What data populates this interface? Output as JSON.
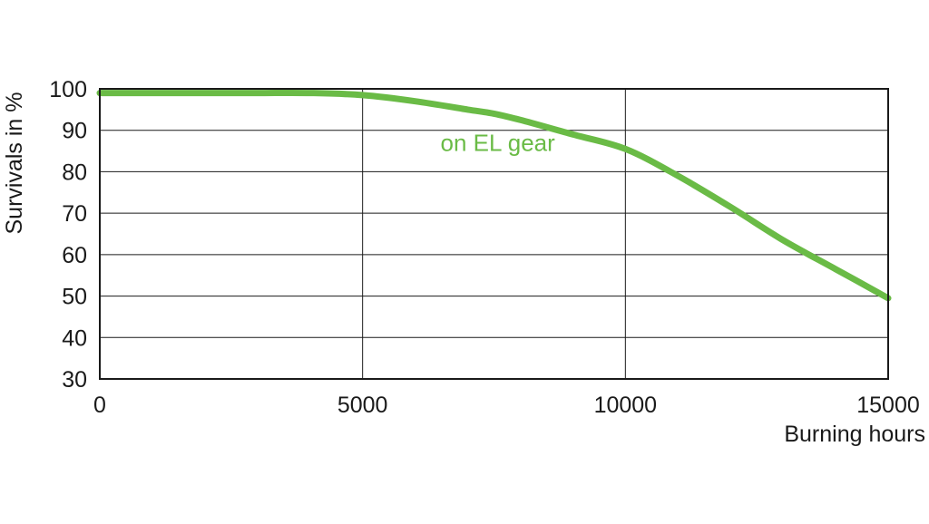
{
  "chart_data": {
    "type": "line",
    "title": "",
    "xlabel": "Burning hours",
    "ylabel": "Survivals in %",
    "xlim": [
      0,
      15000
    ],
    "ylim": [
      30,
      100
    ],
    "x_ticks": [
      0,
      5000,
      10000,
      15000
    ],
    "x_tick_labels": [
      "0",
      "5000",
      "10000",
      "15000"
    ],
    "y_ticks": [
      30,
      40,
      50,
      60,
      70,
      80,
      90,
      100
    ],
    "y_tick_labels": [
      "30",
      "40",
      "50",
      "60",
      "70",
      "80",
      "90",
      "100"
    ],
    "grid": true,
    "series": [
      {
        "color": "#6abb46",
        "x": [
          0,
          1000,
          2000,
          3000,
          4000,
          5000,
          6000,
          7000,
          7500,
          8000,
          9000,
          10000,
          11000,
          12000,
          13000,
          14000,
          15000
        ],
        "values": [
          99,
          99,
          99,
          99,
          99,
          98.5,
          97,
          95,
          94,
          92.5,
          89,
          85.5,
          79,
          71.5,
          63.5,
          56.5,
          49.5
        ]
      }
    ],
    "annotations": [
      {
        "text": "on EL gear",
        "x": 7000,
        "y": 87,
        "color": "#6abb46"
      }
    ]
  }
}
